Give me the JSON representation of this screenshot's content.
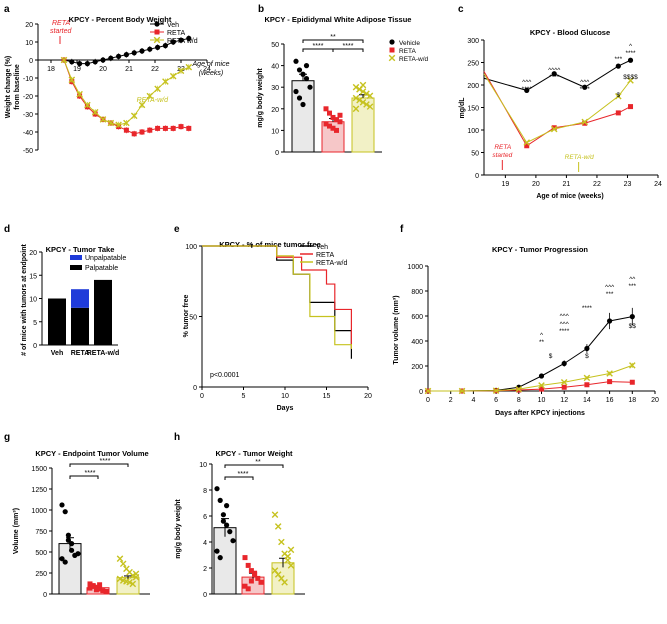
{
  "colors": {
    "black": "#000000",
    "red": "#e8262b",
    "yellow": "#c6c21f",
    "blue": "#1f3bd9",
    "grey_fill": "#e9e9e9"
  },
  "panels": {
    "a": "a",
    "b": "b",
    "c": "c",
    "d": "d",
    "e": "e",
    "f": "f",
    "g": "g",
    "h": "h"
  },
  "chart_data": [
    {
      "panel": "a",
      "type": "line",
      "title": "KPCY - Percent Body Weight",
      "xlabel": "Age of mice (weeks)",
      "xlabel_lines": [
        "Age of mice",
        "(weeks)"
      ],
      "ylabel": "Weight change (%) from baseline",
      "ylabel_lines": [
        "Weight change (%)",
        "from baseline"
      ],
      "xlim": [
        17.5,
        24
      ],
      "ylim": [
        -50,
        20
      ],
      "xticks": [
        18,
        19,
        20,
        21,
        22,
        23,
        24
      ],
      "yticks": [
        -50,
        -40,
        -30,
        -20,
        -10,
        0,
        10,
        20
      ],
      "grid": false,
      "legend_position": "top-right",
      "annotations": [
        {
          "text": "RETA started",
          "lines": [
            "RETA",
            "started"
          ],
          "x": 18.5,
          "color": "red"
        },
        {
          "text": "RETA-w/d",
          "x": 21.6,
          "color": "yellow"
        }
      ],
      "series": [
        {
          "name": "Veh",
          "color": "black",
          "marker": "circle",
          "x": [
            18.5,
            18.8,
            19.1,
            19.4,
            19.7,
            20.0,
            20.3,
            20.6,
            20.9,
            21.2,
            21.5,
            21.8,
            22.1,
            22.4,
            22.7,
            23.0,
            23.3
          ],
          "y": [
            0,
            -1,
            -2,
            -2,
            -1,
            0,
            1,
            2,
            3,
            4,
            5,
            6,
            7,
            8,
            10,
            11,
            12
          ]
        },
        {
          "name": "RETA",
          "color": "red",
          "marker": "square",
          "x": [
            18.5,
            18.8,
            19.1,
            19.4,
            19.7,
            20.0,
            20.3,
            20.6,
            20.9,
            21.2,
            21.5,
            21.8,
            22.1,
            22.4,
            22.7,
            23.0,
            23.3
          ],
          "y": [
            0,
            -12,
            -20,
            -26,
            -30,
            -33,
            -35,
            -37,
            -39,
            -41,
            -40,
            -39,
            -38,
            -38,
            -38,
            -37,
            -38
          ]
        },
        {
          "name": "RETA w/d",
          "color": "yellow",
          "marker": "x",
          "x": [
            18.5,
            18.8,
            19.1,
            19.4,
            19.7,
            20.0,
            20.3,
            20.6,
            20.9,
            21.2,
            21.5,
            21.8,
            22.1,
            22.4,
            22.7,
            23.0,
            23.3
          ],
          "y": [
            0,
            -11,
            -19,
            -25,
            -29,
            -33,
            -35,
            -36,
            -35,
            -31,
            -25,
            -20,
            -16,
            -12,
            -9,
            -6,
            -4
          ]
        }
      ]
    },
    {
      "panel": "b",
      "type": "bar",
      "title": "KPCY - Epididymal White Adipose Tissue",
      "ylabel": "mg/g body weight",
      "ylim": [
        0,
        50
      ],
      "yticks": [
        0,
        10,
        20,
        30,
        40,
        50
      ],
      "categories": [
        "Vehicle",
        "RETA",
        "RETA-w/d"
      ],
      "values": [
        33,
        14,
        25
      ],
      "errors": [
        3,
        1.5,
        1.5
      ],
      "legend": [
        "Vehicle",
        "RETA",
        "RETA-w/d"
      ],
      "legend_position": "top-right",
      "significance": [
        "****",
        "****",
        "**"
      ]
    },
    {
      "panel": "c",
      "type": "line",
      "title": "KPCY - Blood Glucose",
      "xlabel": "Age of mice (weeks)",
      "ylabel": "mg/dL",
      "xlim": [
        18.3,
        24
      ],
      "ylim": [
        0,
        300
      ],
      "xticks": [
        19,
        20,
        21,
        22,
        23,
        24
      ],
      "yticks": [
        0,
        50,
        100,
        150,
        200,
        250,
        300
      ],
      "annotations": [
        {
          "text": "RETA started",
          "lines": [
            "RETA",
            "started"
          ],
          "x": 18.9,
          "color": "red"
        },
        {
          "text": "RETA-w/d",
          "x": 21.4,
          "color": "yellow"
        }
      ],
      "significance": [
        "^^^",
        "****",
        "^^^^",
        "****",
        "^^^",
        "****",
        "***",
        "^",
        "****",
        "$",
        "$$$$"
      ],
      "series": [
        {
          "name": "Vehicle",
          "color": "black",
          "x": [
            18.3,
            19.7,
            20.6,
            21.6,
            22.7,
            23.1
          ],
          "y": [
            215,
            188,
            225,
            195,
            242,
            255
          ]
        },
        {
          "name": "RETA",
          "color": "red",
          "x": [
            18.3,
            19.7,
            20.6,
            21.6,
            22.7,
            23.1
          ],
          "y": [
            230,
            65,
            105,
            115,
            138,
            152
          ]
        },
        {
          "name": "RETA-w/d",
          "color": "yellow",
          "x": [
            18.3,
            19.7,
            20.6,
            21.6,
            22.7,
            23.1
          ],
          "y": [
            225,
            72,
            102,
            118,
            175,
            210
          ]
        }
      ]
    },
    {
      "panel": "d",
      "type": "bar",
      "title": "KPCY - Tumor Take",
      "ylabel": "# of mice with tumors at endpoint",
      "ylim": [
        0,
        20
      ],
      "yticks": [
        0,
        5,
        10,
        15,
        20
      ],
      "categories": [
        "Veh",
        "RETA",
        "RETA-w/d"
      ],
      "series": [
        {
          "name": "Palpatable",
          "values": [
            10,
            8,
            14
          ]
        },
        {
          "name": "Unpalpatable",
          "values": [
            0,
            4,
            0
          ]
        }
      ],
      "legend_position": "top-right"
    },
    {
      "panel": "e",
      "type": "line",
      "title": "KPCY - % of mice tumor free",
      "xlabel": "Days",
      "ylabel": "% tumor free",
      "xlim": [
        0,
        20
      ],
      "ylim": [
        0,
        100
      ],
      "xticks": [
        0,
        5,
        10,
        15,
        20
      ],
      "yticks": [
        0,
        50,
        100
      ],
      "annotation": "p<0.0001",
      "legend_position": "top-right",
      "series": [
        {
          "name": "Veh",
          "color": "black",
          "x": [
            0,
            9,
            9,
            11,
            11,
            13,
            13,
            16,
            16,
            18,
            18
          ],
          "y": [
            100,
            100,
            90,
            90,
            80,
            80,
            60,
            60,
            40,
            40,
            20
          ]
        },
        {
          "name": "RETA",
          "color": "red",
          "x": [
            0,
            9,
            9,
            12,
            12,
            15,
            15,
            16,
            16,
            18,
            18
          ],
          "y": [
            100,
            100,
            92,
            92,
            83,
            83,
            73,
            73,
            55,
            55,
            27
          ]
        },
        {
          "name": "RETA-w/d",
          "color": "yellow",
          "x": [
            0,
            9,
            9,
            11,
            11,
            13,
            13,
            16,
            16,
            18,
            18
          ],
          "y": [
            100,
            100,
            93,
            93,
            80,
            80,
            50,
            50,
            30,
            30,
            27
          ]
        }
      ]
    },
    {
      "panel": "f",
      "type": "line",
      "title": "KPCY - Tumor Progression",
      "xlabel": "Days after KPCY injections",
      "ylabel": "Tumor volume (mm³)",
      "xlim": [
        0,
        20
      ],
      "ylim": [
        0,
        1000
      ],
      "xticks": [
        0,
        2,
        4,
        6,
        8,
        10,
        12,
        14,
        16,
        18,
        20
      ],
      "yticks": [
        0,
        200,
        400,
        600,
        800,
        1000
      ],
      "significance": [
        "^",
        "**",
        "$",
        "^^^",
        "****",
        "^^^",
        "****",
        "$",
        "^^^",
        "***",
        "^^",
        "***",
        "$$"
      ],
      "series": [
        {
          "name": "Vehicle",
          "color": "black",
          "x": [
            0,
            3,
            6,
            8,
            10,
            12,
            14,
            16,
            18
          ],
          "y": [
            0,
            0,
            5,
            30,
            120,
            220,
            340,
            560,
            595
          ]
        },
        {
          "name": "RETA",
          "color": "red",
          "x": [
            0,
            3,
            6,
            8,
            10,
            12,
            14,
            16,
            18
          ],
          "y": [
            0,
            0,
            2,
            8,
            15,
            30,
            50,
            75,
            70
          ]
        },
        {
          "name": "RETA-w/d",
          "color": "yellow",
          "x": [
            0,
            3,
            6,
            8,
            10,
            12,
            14,
            16,
            18
          ],
          "y": [
            0,
            0,
            3,
            15,
            45,
            70,
            105,
            140,
            205
          ]
        }
      ]
    },
    {
      "panel": "g",
      "type": "bar",
      "title": "KPCY - Endpoint Tumor Volume",
      "ylabel": "Volume (mm³)",
      "ylim": [
        0,
        1500
      ],
      "yticks": [
        0,
        250,
        500,
        750,
        1000,
        1250,
        1500
      ],
      "categories": [
        "Vehicle",
        "RETA",
        "RETA-w/d"
      ],
      "values": [
        600,
        75,
        195
      ],
      "errors": [
        70,
        12,
        20
      ],
      "significance": [
        "****",
        "****"
      ]
    },
    {
      "panel": "h",
      "type": "bar",
      "title": "KPCY - Tumor Weight",
      "ylabel": "mg/g body weight",
      "ylim": [
        0,
        10
      ],
      "yticks": [
        0,
        2,
        4,
        6,
        8,
        10
      ],
      "categories": [
        "Vehicle",
        "RETA",
        "RETA-w/d"
      ],
      "values": [
        5.1,
        1.3,
        2.4
      ],
      "errors": [
        0.7,
        0.3,
        0.35
      ],
      "significance": [
        "****",
        "**"
      ]
    }
  ]
}
